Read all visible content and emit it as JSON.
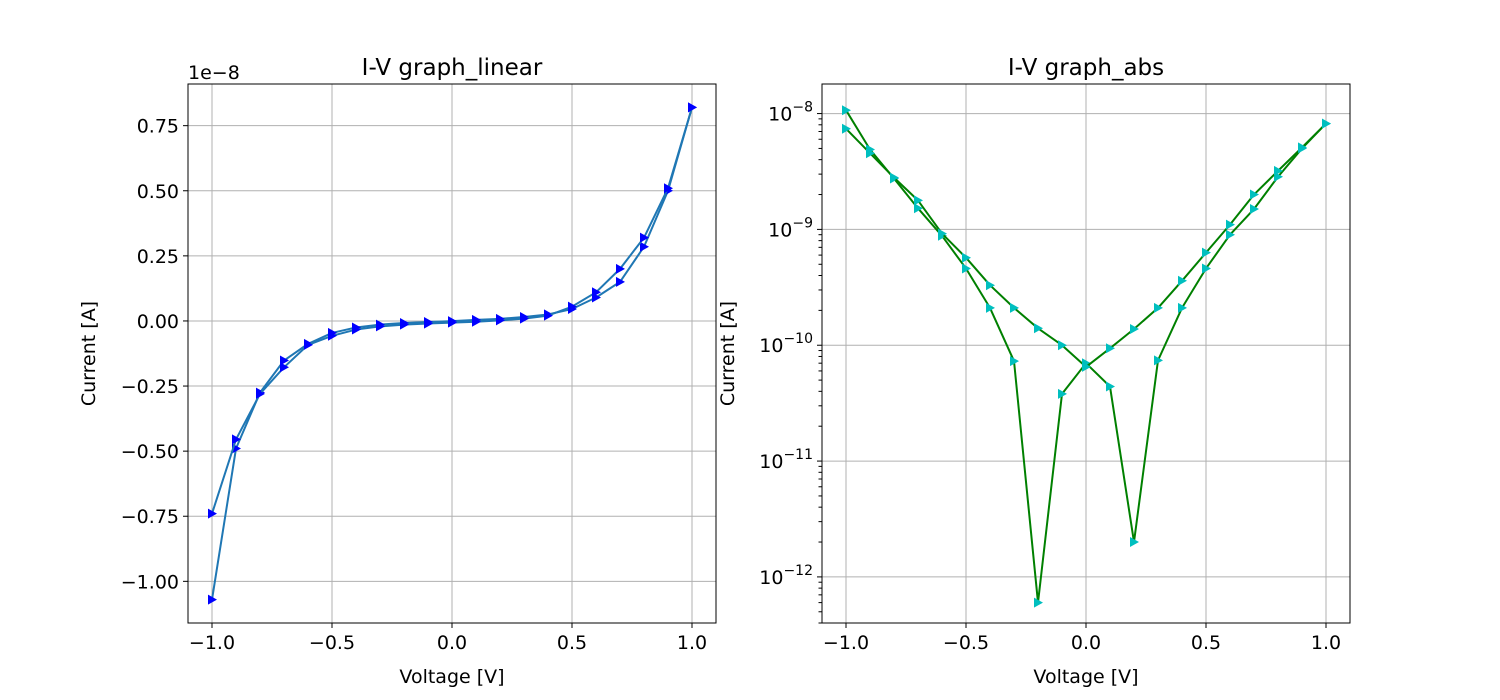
{
  "chart_data": [
    {
      "type": "line",
      "title": "I-V graph_linear",
      "xlabel": "Voltage [V]",
      "ylabel": "Current [A]",
      "y_offset_label": "1e−8",
      "xlim": [
        -1.1,
        1.1
      ],
      "ylim": [
        -1.16e-08,
        9.1e-09
      ],
      "y_scale": "linear",
      "grid": true,
      "x_ticks": [
        {
          "value": -1.0,
          "label": "−1.0"
        },
        {
          "value": -0.5,
          "label": "−0.5"
        },
        {
          "value": 0.0,
          "label": "0.0"
        },
        {
          "value": 0.5,
          "label": "0.5"
        },
        {
          "value": 1.0,
          "label": "1.0"
        }
      ],
      "y_ticks": [
        {
          "value": 7.5e-09,
          "label": "0.75"
        },
        {
          "value": 5e-09,
          "label": "0.50"
        },
        {
          "value": 2.5e-09,
          "label": "0.25"
        },
        {
          "value": 0.0,
          "label": "0.00"
        },
        {
          "value": -2.5e-09,
          "label": "−0.25"
        },
        {
          "value": -5e-09,
          "label": "−0.50"
        },
        {
          "value": -7.5e-09,
          "label": "−0.75"
        },
        {
          "value": -1e-08,
          "label": "−1.00"
        }
      ],
      "line_color": "#1f77b4",
      "marker_color": "#0000ff",
      "marker": "triangle-right",
      "x": [
        -1.0,
        -0.9,
        -0.8,
        -0.7,
        -0.6,
        -0.5,
        -0.4,
        -0.3,
        -0.2,
        -0.1,
        0.0,
        0.1,
        0.2,
        0.3,
        0.4,
        0.5,
        0.6,
        0.7,
        0.8,
        0.9,
        1.0
      ],
      "series": [
        {
          "values": [
            -1.07e-08,
            -4.9e-09,
            -2.75e-09,
            -1.52e-09,
            -8.8e-10,
            -4.6e-10,
            -2.5e-10,
            -1.4e-10,
            -8e-11,
            -4e-11,
            -7e-12,
            4e-11,
            8e-11,
            1.5e-10,
            2.5e-10,
            4.6e-10,
            9e-10,
            1.5e-09,
            2.85e-09,
            5e-09,
            8.2e-09
          ]
        },
        {
          "values": [
            -7.4e-09,
            -4.55e-09,
            -2.8e-09,
            -1.78e-09,
            -9.2e-10,
            -5.7e-10,
            -3.3e-10,
            -2.1e-10,
            -1.4e-10,
            -1e-10,
            -6.5e-11,
            -3e-11,
            2.1e-11,
            9e-11,
            2.05e-10,
            5.5e-10,
            1.1e-09,
            2e-09,
            3.2e-09,
            5.1e-09,
            8.2e-09
          ]
        }
      ]
    },
    {
      "type": "line",
      "title": "I-V graph_abs",
      "xlabel": "Voltage [V]",
      "ylabel": "Current [A]",
      "xlim": [
        -1.1,
        1.1
      ],
      "ylim": [
        4e-13,
        1.8e-08
      ],
      "y_scale": "log",
      "grid": true,
      "x_ticks": [
        {
          "value": -1.0,
          "label": "−1.0"
        },
        {
          "value": -0.5,
          "label": "−0.5"
        },
        {
          "value": 0.0,
          "label": "0.0"
        },
        {
          "value": 0.5,
          "label": "0.5"
        },
        {
          "value": 1.0,
          "label": "1.0"
        }
      ],
      "y_ticks": [
        {
          "value": 1e-08,
          "base": "10",
          "exp": "−8"
        },
        {
          "value": 1e-09,
          "base": "10",
          "exp": "−9"
        },
        {
          "value": 1e-10,
          "base": "10",
          "exp": "−10"
        },
        {
          "value": 1e-11,
          "base": "10",
          "exp": "−11"
        },
        {
          "value": 1e-12,
          "base": "10",
          "exp": "−12"
        }
      ],
      "line_color": "#008000",
      "marker_color": "#00bfbf",
      "marker": "triangle-right",
      "x": [
        -1.0,
        -0.9,
        -0.8,
        -0.7,
        -0.6,
        -0.5,
        -0.4,
        -0.3,
        -0.2,
        -0.1,
        0.0,
        0.1,
        0.2,
        0.3,
        0.4,
        0.5,
        0.6,
        0.7,
        0.8,
        0.9,
        1.0
      ],
      "series": [
        {
          "values": [
            1.07e-08,
            4.9e-09,
            2.75e-09,
            1.52e-09,
            8.8e-10,
            4.6e-10,
            2.1e-10,
            7.3e-11,
            6e-13,
            3.8e-11,
            7e-11,
            4.4e-11,
            2e-12,
            7.4e-11,
            2.1e-10,
            4.6e-10,
            9e-10,
            1.5e-09,
            2.85e-09,
            5e-09,
            8.2e-09
          ]
        },
        {
          "values": [
            7.4e-09,
            4.55e-09,
            2.8e-09,
            1.78e-09,
            9.2e-10,
            5.7e-10,
            3.3e-10,
            2.1e-10,
            1.4e-10,
            1e-10,
            6.5e-11,
            9.4e-11,
            1.38e-10,
            2.1e-10,
            3.6e-10,
            6.3e-10,
            1.1e-09,
            2e-09,
            3.2e-09,
            5.1e-09,
            8.2e-09
          ]
        }
      ]
    }
  ]
}
